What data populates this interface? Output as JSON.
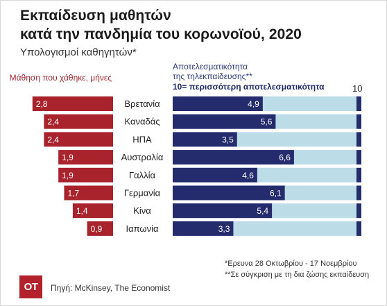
{
  "title_line1": "Εκπαίδευση μαθητών",
  "title_line2": "κατά την πανδημία του κορωνοϊού, 2020",
  "subtitle": "Υπολογισμοί καθηγητών*",
  "left_header": "Μάθηση που χάθηκε, μήνες",
  "right_header_line1": "Αποτελεσματικότητα",
  "right_header_line2": "της τηλεκπαίδευσης**",
  "right_scale_note": "10=  περισσότερη αποτελεσματικότητα",
  "max_label": "10",
  "footnote1": "*Ερευνα 28 Οκτωβρίου - 17 Νοεμβρίου",
  "footnote2": "**Σε σύγκριση με τη δια ζώσης εκπαίδευση",
  "source": "Πηγή: McKinsey, The Economist",
  "logo": "OT",
  "colors": {
    "learning_lost": "#a8232c",
    "effectiveness": "#252c6e",
    "track": "#bcdde8",
    "max_marker": "#252c6e"
  },
  "chart_data": {
    "type": "bar",
    "categories": [
      "Βρετανία",
      "Καναδάς",
      "ΗΠΑ",
      "Αυστραλία",
      "Γαλλία",
      "Γερμανία",
      "Κίνα",
      "Ιαπωνία"
    ],
    "series": [
      {
        "name": "Μάθηση που χάθηκε, μήνες",
        "values": [
          2.8,
          2.4,
          2.4,
          1.9,
          1.9,
          1.7,
          1.4,
          0.9
        ],
        "value_labels": [
          "2,8",
          "2,4",
          "2,4",
          "1,9",
          "1,9",
          "1,7",
          "1,4",
          "0,9"
        ]
      },
      {
        "name": "Αποτελεσματικότητα της τηλεκπαίδευσης**",
        "values": [
          4.9,
          5.6,
          3.5,
          6.6,
          4.6,
          6.1,
          5.4,
          3.3
        ],
        "value_labels": [
          "4,9",
          "5,6",
          "3,5",
          "6,6",
          "4,6",
          "6,1",
          "5,4",
          "3,3"
        ]
      }
    ],
    "effectiveness_max": 10,
    "grid": false
  }
}
